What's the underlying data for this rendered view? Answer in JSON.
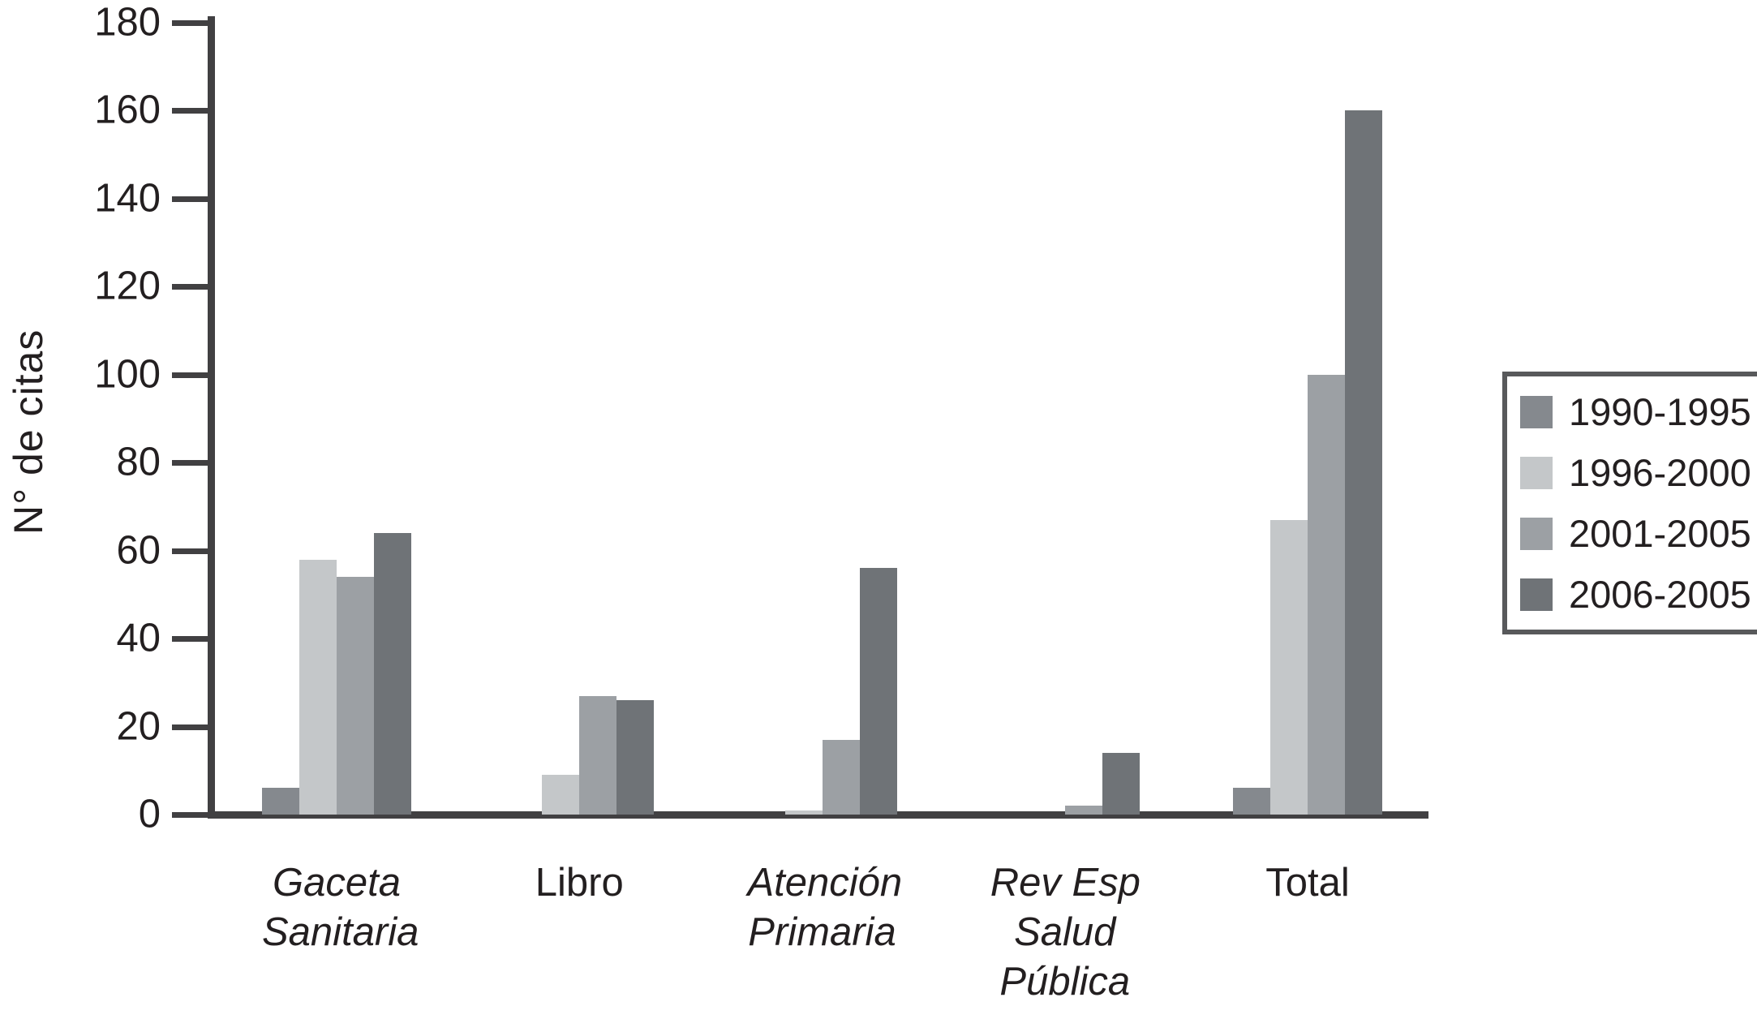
{
  "chart_data": {
    "type": "bar",
    "title": "",
    "ylabel": "N° de citas",
    "xlabel": "",
    "ylim": [
      0,
      180
    ],
    "yticks": [
      0,
      20,
      40,
      60,
      80,
      100,
      120,
      140,
      160,
      180
    ],
    "grid": false,
    "legend_position": "right",
    "axis_color": "#414042",
    "text_color": "#231f20",
    "categories": [
      {
        "label": "Gaceta Sanitaria",
        "lines": [
          "Gaceta",
          "Sanitaria"
        ],
        "italic": true
      },
      {
        "label": "Libro",
        "lines": [
          "Libro"
        ],
        "italic": false
      },
      {
        "label": "Atención Primaria",
        "lines": [
          "Atención",
          "Primaria"
        ],
        "italic": true
      },
      {
        "label": "Rev Esp Salud Pública",
        "lines": [
          "Rev Esp",
          "Salud",
          "Pública"
        ],
        "italic": true
      },
      {
        "label": "Total",
        "lines": [
          "Total"
        ],
        "italic": false
      }
    ],
    "series": [
      {
        "name": "1990-1995",
        "color": "#85898e",
        "values": [
          6,
          0,
          0,
          0,
          6
        ]
      },
      {
        "name": "1996-2000",
        "color": "#c4c7c9",
        "values": [
          58,
          9,
          1,
          0,
          67
        ]
      },
      {
        "name": "2001-2005",
        "color": "#9ca0a4",
        "values": [
          54,
          27,
          17,
          2,
          100
        ]
      },
      {
        "name": "2006-2005",
        "color": "#6f7377",
        "values": [
          64,
          26,
          56,
          14,
          160
        ]
      }
    ]
  }
}
